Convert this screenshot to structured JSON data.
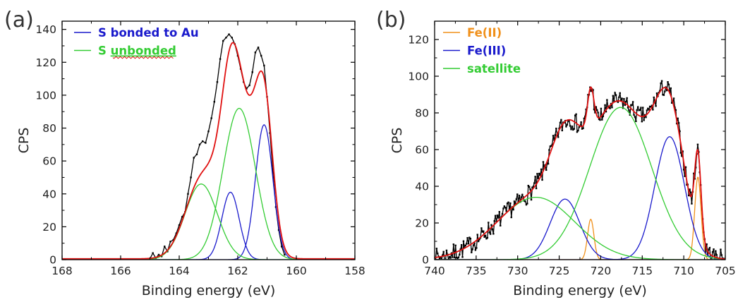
{
  "chart_data": [
    {
      "type": "line",
      "panel_label": "(a)",
      "xlabel": "Binding energy (eV)",
      "ylabel": "CPS",
      "xlim": [
        168,
        158
      ],
      "ylim": [
        0,
        145
      ],
      "x_reversed": true,
      "x_ticks": [
        168,
        166,
        164,
        162,
        160,
        158
      ],
      "y_ticks": [
        0,
        20,
        40,
        60,
        80,
        100,
        120,
        140
      ],
      "legend_position": "top-left",
      "legend": [
        {
          "label": "S bonded to Au",
          "color": "#1a1acc"
        },
        {
          "label": "S unbonded",
          "color": "#33cc33",
          "label_parts": [
            "S ",
            "unbonded"
          ]
        }
      ],
      "colors": {
        "data": "#000000",
        "fit": "#e01010",
        "bonded": "#1a1acc",
        "unbonded": "#33cc33"
      },
      "components": [
        {
          "name": "S bonded to Au",
          "color": "#1a1acc",
          "center": 161.1,
          "height": 82,
          "fwhm": 0.7
        },
        {
          "name": "S bonded to Au",
          "color": "#1a1acc",
          "center": 162.25,
          "height": 41,
          "fwhm": 0.7
        },
        {
          "name": "S unbonded",
          "color": "#33cc33",
          "center": 161.95,
          "height": 92,
          "fwhm": 1.3
        },
        {
          "name": "S unbonded",
          "color": "#33cc33",
          "center": 163.25,
          "height": 46,
          "fwhm": 1.3
        }
      ],
      "fit_baseline": 0.5,
      "measured": [
        [
          165.0,
          0.5
        ],
        [
          164.9,
          4
        ],
        [
          164.8,
          1
        ],
        [
          164.7,
          3
        ],
        [
          164.6,
          2
        ],
        [
          164.5,
          8
        ],
        [
          164.4,
          5
        ],
        [
          164.3,
          11
        ],
        [
          164.2,
          12
        ],
        [
          164.1,
          16
        ],
        [
          164.0,
          21
        ],
        [
          163.9,
          26
        ],
        [
          163.8,
          29
        ],
        [
          163.7,
          40
        ],
        [
          163.6,
          50
        ],
        [
          163.5,
          62
        ],
        [
          163.4,
          64
        ],
        [
          163.3,
          70
        ],
        [
          163.2,
          72
        ],
        [
          163.1,
          71
        ],
        [
          163.0,
          78
        ],
        [
          162.9,
          86
        ],
        [
          162.8,
          96
        ],
        [
          162.7,
          108
        ],
        [
          162.6,
          122
        ],
        [
          162.5,
          133
        ],
        [
          162.4,
          135
        ],
        [
          162.3,
          137
        ],
        [
          162.2,
          135
        ],
        [
          162.1,
          131
        ],
        [
          162.0,
          124
        ],
        [
          161.9,
          116
        ],
        [
          161.8,
          108
        ],
        [
          161.7,
          104
        ],
        [
          161.6,
          106
        ],
        [
          161.5,
          114
        ],
        [
          161.4,
          126
        ],
        [
          161.3,
          129
        ],
        [
          161.2,
          124
        ],
        [
          161.1,
          118
        ],
        [
          161.0,
          99
        ],
        [
          160.9,
          77
        ],
        [
          160.8,
          53
        ],
        [
          160.7,
          32
        ],
        [
          160.6,
          18
        ],
        [
          160.5,
          8
        ],
        [
          160.4,
          3
        ]
      ]
    },
    {
      "type": "line",
      "panel_label": "(b)",
      "xlabel": "Binding energy (eV)",
      "ylabel": "CPS",
      "xlim": [
        740,
        705
      ],
      "ylim": [
        0,
        130
      ],
      "x_reversed": true,
      "x_ticks": [
        740,
        735,
        730,
        725,
        720,
        715,
        710,
        705
      ],
      "y_ticks": [
        0,
        20,
        40,
        60,
        80,
        100,
        120
      ],
      "legend_position": "top-left",
      "legend": [
        {
          "label": "Fe(II)",
          "color": "#f0901a"
        },
        {
          "label": "Fe(III)",
          "color": "#1a1acc"
        },
        {
          "label": "satellite",
          "color": "#33cc33"
        }
      ],
      "colors": {
        "data": "#000000",
        "fit": "#e01010",
        "fe2": "#f0901a",
        "fe3": "#1a1acc",
        "satellite": "#33cc33"
      },
      "components": [
        {
          "name": "Fe(II)",
          "color": "#f0901a",
          "center": 708.3,
          "height": 45,
          "fwhm": 0.9
        },
        {
          "name": "Fe(II)",
          "color": "#f0901a",
          "center": 721.2,
          "height": 22,
          "fwhm": 0.9
        },
        {
          "name": "Fe(III)",
          "color": "#1a1acc",
          "center": 711.7,
          "height": 67,
          "fwhm": 4.2
        },
        {
          "name": "Fe(III)",
          "color": "#1a1acc",
          "center": 724.3,
          "height": 33,
          "fwhm": 4.2
        },
        {
          "name": "satellite",
          "color": "#33cc33",
          "center": 717.6,
          "height": 83,
          "fwhm": 8.8
        },
        {
          "name": "satellite",
          "color": "#33cc33",
          "center": 727.8,
          "height": 34,
          "fwhm": 11
        }
      ],
      "fit_baseline": 0,
      "noise_amplitude": 5
    }
  ]
}
